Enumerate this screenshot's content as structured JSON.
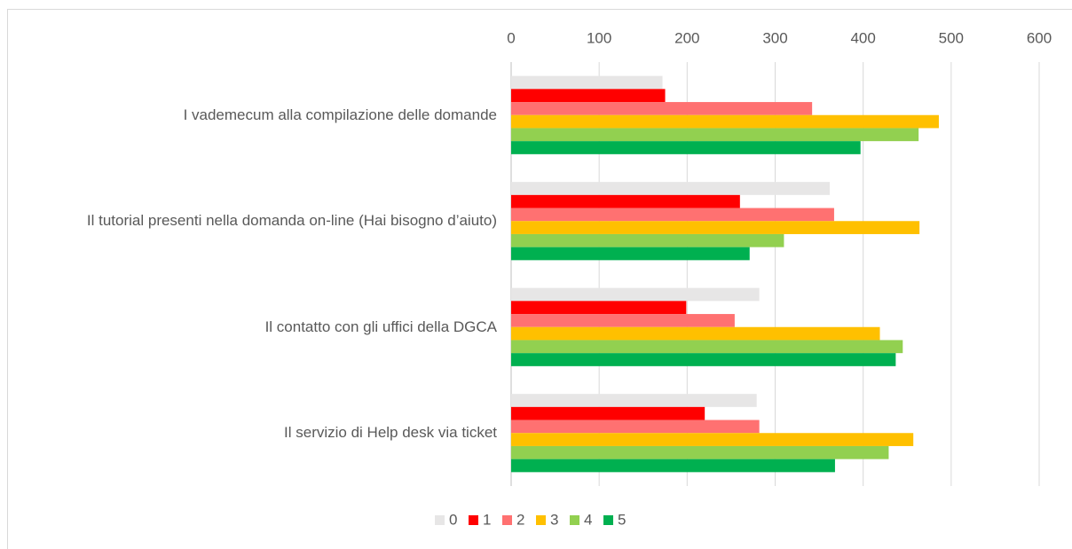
{
  "chart_data": {
    "type": "bar",
    "orientation": "horizontal",
    "categories": [
      "I vademecum alla compilazione delle domande",
      "Il tutorial presenti nella domanda on-line (Hai bisogno d’aiuto)",
      "Il contatto con gli uffici della DGCA",
      "Il servizio di Help desk via ticket"
    ],
    "series": [
      {
        "name": "0",
        "color": "#e7e6e6",
        "values": [
          172,
          362,
          282,
          279
        ]
      },
      {
        "name": "1",
        "color": "#ff0000",
        "values": [
          175,
          260,
          199,
          220
        ]
      },
      {
        "name": "2",
        "color": "#ff7171",
        "values": [
          342,
          367,
          254,
          282
        ]
      },
      {
        "name": "3",
        "color": "#ffc000",
        "values": [
          486,
          464,
          419,
          457
        ]
      },
      {
        "name": "4",
        "color": "#92d050",
        "values": [
          463,
          310,
          445,
          429
        ]
      },
      {
        "name": "5",
        "color": "#00b050",
        "values": [
          397,
          271,
          437,
          368
        ]
      }
    ],
    "xlim": [
      0,
      600
    ],
    "xticks": [
      0,
      100,
      200,
      300,
      400,
      500,
      600
    ],
    "grid": true,
    "legend": "bottom"
  }
}
